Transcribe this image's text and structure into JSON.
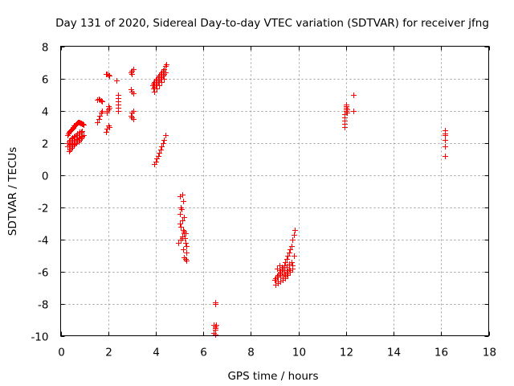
{
  "chart_data": {
    "type": "scatter",
    "title": "Day 131 of 2020, Sidereal Day-to-day VTEC variation (SDTVAR) for receiver jfng",
    "xlabel": "GPS time / hours",
    "ylabel": "SDTVAR / TECUs",
    "xlim": [
      0,
      18
    ],
    "ylim": [
      -10,
      8
    ],
    "xticks": [
      0,
      2,
      4,
      6,
      8,
      10,
      12,
      14,
      16,
      18
    ],
    "yticks": [
      -10,
      -8,
      -6,
      -4,
      -2,
      0,
      2,
      4,
      6,
      8
    ],
    "grid": true,
    "marker": "+",
    "color": "#ff0000",
    "series": [
      {
        "name": "SDTVAR",
        "x": [
          0.3,
          0.33,
          0.36,
          0.39,
          0.42,
          0.45,
          0.48,
          0.51,
          0.54,
          0.57,
          0.6,
          0.63,
          0.66,
          0.69,
          0.72,
          0.75,
          0.78,
          0.81,
          0.84,
          0.87,
          0.9,
          0.93,
          0.96,
          0.35,
          0.4,
          0.45,
          0.5,
          0.55,
          0.6,
          0.65,
          0.7,
          0.75,
          0.8,
          0.85,
          0.9,
          0.95,
          0.3,
          0.35,
          0.4,
          0.45,
          0.5,
          0.55,
          0.6,
          0.65,
          0.7,
          0.75,
          0.8,
          0.85,
          0.9,
          0.3,
          0.35,
          0.4,
          0.45,
          0.5,
          0.55,
          0.6,
          0.65,
          0.7,
          0.75,
          0.8,
          0.85,
          0.9,
          1.55,
          1.6,
          1.65,
          1.7,
          1.75,
          1.55,
          1.6,
          1.65,
          1.7,
          1.75,
          1.9,
          1.95,
          2.0,
          2.05,
          1.9,
          1.95,
          2.0,
          2.05,
          1.95,
          2.0,
          2.05,
          1.95,
          2.0,
          2.35,
          2.4,
          2.4,
          2.4,
          2.4,
          2.4,
          2.4,
          2.95,
          3.0,
          3.05,
          2.95,
          3.0,
          3.05,
          2.95,
          3.0,
          3.05,
          3.0,
          3.05,
          3.0,
          3.85,
          3.9,
          3.95,
          4.0,
          4.05,
          4.1,
          4.15,
          4.2,
          4.25,
          4.3,
          4.35,
          4.4,
          4.45,
          3.9,
          3.95,
          4.0,
          4.05,
          4.1,
          4.15,
          4.2,
          4.25,
          4.3,
          4.35,
          4.4,
          3.95,
          4.05,
          4.15,
          4.25,
          4.35,
          3.95,
          4.0,
          4.05,
          4.1,
          4.15,
          4.2,
          4.25,
          4.3,
          4.35,
          4.4,
          4.95,
          5.0,
          5.05,
          5.1,
          5.15,
          5.2,
          5.25,
          5.3,
          5.0,
          5.05,
          5.1,
          5.15,
          5.2,
          5.25,
          5.3,
          5.02,
          5.07,
          5.12,
          5.17,
          5.22,
          5.27,
          5.05,
          5.1,
          5.15,
          5.2,
          5.25,
          6.5,
          6.5,
          6.45,
          6.5,
          6.55,
          6.5,
          6.5,
          6.45,
          6.5,
          9.0,
          9.05,
          9.1,
          9.15,
          9.2,
          9.25,
          9.3,
          9.35,
          9.4,
          9.45,
          9.5,
          9.55,
          9.6,
          9.65,
          9.7,
          9.75,
          9.8,
          9.85,
          9.1,
          9.2,
          9.3,
          9.4,
          9.5,
          9.6,
          9.7,
          9.8,
          9.15,
          9.25,
          9.35,
          9.45,
          9.55,
          9.65,
          9.75,
          9.05,
          9.15,
          9.25,
          9.35,
          9.45,
          9.55,
          9.65,
          9.75,
          9.2,
          9.3,
          9.4,
          9.5,
          9.6,
          9.25,
          9.35,
          9.45,
          9.55,
          9.65,
          9.3,
          9.4,
          9.5,
          9.6,
          11.95,
          11.95,
          11.95,
          11.95,
          11.95,
          12.0,
          12.0,
          12.0,
          12.0,
          12.0,
          12.05,
          12.05,
          12.3,
          12.3,
          16.15,
          16.15,
          16.15,
          16.15,
          16.15,
          16.15
        ],
        "y": [
          2.5,
          2.6,
          2.7,
          2.75,
          2.8,
          2.85,
          2.9,
          2.95,
          3.0,
          3.05,
          3.1,
          3.15,
          3.2,
          3.25,
          3.3,
          3.3,
          3.3,
          3.28,
          3.25,
          3.22,
          3.2,
          3.18,
          3.15,
          1.5,
          1.6,
          1.7,
          1.8,
          1.9,
          1.95,
          2.0,
          2.05,
          2.1,
          2.2,
          2.3,
          2.4,
          2.5,
          2.0,
          2.1,
          2.2,
          2.3,
          2.35,
          2.4,
          2.45,
          2.5,
          2.55,
          2.6,
          2.65,
          2.7,
          2.75,
          1.8,
          1.9,
          1.95,
          2.0,
          2.05,
          2.1,
          2.15,
          2.2,
          2.25,
          2.3,
          2.35,
          2.4,
          2.45,
          3.3,
          3.5,
          3.7,
          3.9,
          4.0,
          4.7,
          4.75,
          4.7,
          4.65,
          4.6,
          6.3,
          6.3,
          6.25,
          6.2,
          2.7,
          2.9,
          3.1,
          3.0,
          4.0,
          4.1,
          4.2,
          3.9,
          4.3,
          5.9,
          5.0,
          4.8,
          4.6,
          4.4,
          4.2,
          4.0,
          6.4,
          6.5,
          6.6,
          5.3,
          5.2,
          5.1,
          3.7,
          3.6,
          3.5,
          3.9,
          4.0,
          6.3,
          5.6,
          5.7,
          5.8,
          5.9,
          6.0,
          6.1,
          6.2,
          6.3,
          6.4,
          6.5,
          6.6,
          6.8,
          6.9,
          5.4,
          5.5,
          5.6,
          5.7,
          5.8,
          5.9,
          6.0,
          6.1,
          6.2,
          6.3,
          6.4,
          5.2,
          5.4,
          5.6,
          5.8,
          6.0,
          0.7,
          0.8,
          1.0,
          1.2,
          1.4,
          1.6,
          1.8,
          2.0,
          2.2,
          2.5,
          -4.2,
          -3.0,
          -2.0,
          -1.2,
          -1.6,
          -2.6,
          -3.6,
          -4.4,
          -2.4,
          -3.2,
          -3.9,
          -4.6,
          -5.1,
          -5.2,
          -5.3,
          -1.3,
          -2.1,
          -2.8,
          -3.5,
          -3.9,
          -4.8,
          -4.0,
          -3.8,
          -3.4,
          -3.6,
          -4.2,
          -7.9,
          -8.0,
          -9.3,
          -9.4,
          -9.3,
          -9.5,
          -9.6,
          -9.8,
          -9.9,
          -6.5,
          -6.4,
          -6.3,
          -6.2,
          -6.1,
          -6.0,
          -5.9,
          -5.8,
          -5.6,
          -5.4,
          -5.2,
          -5.0,
          -4.8,
          -4.6,
          -4.4,
          -4.0,
          -3.7,
          -3.4,
          -5.8,
          -5.9,
          -6.0,
          -6.1,
          -6.0,
          -5.8,
          -5.4,
          -5.0,
          -6.6,
          -6.6,
          -6.5,
          -6.4,
          -6.2,
          -6.0,
          -5.8,
          -6.8,
          -6.7,
          -6.6,
          -6.4,
          -6.3,
          -6.2,
          -6.0,
          -5.6,
          -5.6,
          -5.7,
          -5.9,
          -5.7,
          -5.5,
          -6.2,
          -6.3,
          -6.2,
          -6.0,
          -5.9,
          -5.9,
          -6.0,
          -6.1,
          -5.6,
          3.0,
          3.2,
          3.4,
          3.6,
          3.8,
          4.0,
          4.1,
          4.2,
          4.3,
          4.4,
          3.9,
          4.1,
          5.0,
          4.0,
          2.8,
          2.6,
          2.5,
          2.2,
          1.8,
          1.2
        ]
      }
    ]
  }
}
